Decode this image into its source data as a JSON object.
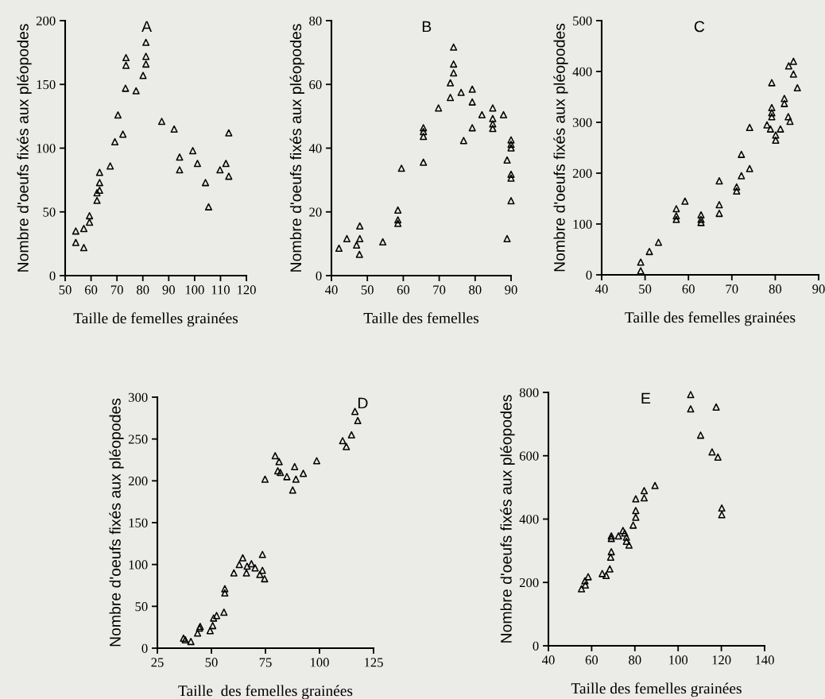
{
  "chart_data": [
    {
      "type": "scatter",
      "title": "A",
      "xlabel": "Taille de femelles grainées",
      "ylabel": "Nombre d'oeufs fixés aux pléopodes",
      "xlim": [
        50,
        120
      ],
      "xticks": [
        50,
        60,
        70,
        80,
        90,
        100,
        110,
        120
      ],
      "ylim": [
        0,
        200
      ],
      "yticks": [
        0,
        50,
        100,
        150,
        200
      ],
      "marker": "triangle",
      "series": [
        {
          "color": "#000000",
          "x": [
            54.1,
            54.1,
            57.2,
            57.2,
            59.4,
            59.4,
            62.3,
            62.3,
            63.3,
            63.3,
            63.3,
            67.4,
            69.2,
            70.4,
            72.3,
            73.3,
            73.5,
            73.5,
            77.4,
            80.1,
            81.2,
            81.2,
            81.2,
            87.3,
            92.1,
            94.2,
            94.2,
            99.3,
            101.1,
            104.2,
            105.4,
            109.8,
            112.1,
            113.2,
            113.2
          ],
          "values": [
            35,
            26,
            37,
            22,
            47,
            42,
            59,
            65,
            67,
            73,
            81,
            86,
            105,
            126,
            111,
            147,
            165,
            171,
            145,
            157,
            166,
            172,
            183,
            121,
            115,
            93,
            83,
            98,
            88,
            73,
            54,
            83,
            88,
            78,
            112
          ]
        }
      ]
    },
    {
      "type": "scatter",
      "title": "B",
      "xlabel": "Taille des femelles",
      "ylabel": "Nombre d'oeufs fixés aux pléopodes",
      "xlim": [
        40,
        90
      ],
      "xticks": [
        40,
        50,
        60,
        70,
        80,
        90
      ],
      "ylim": [
        0,
        80
      ],
      "yticks": [
        0,
        20,
        40,
        60,
        80
      ],
      "marker": "triangle",
      "series": [
        {
          "color": "#000000",
          "x": [
            42.1,
            44.3,
            47.0,
            47.8,
            47.9,
            47.9,
            54.3,
            58.5,
            58.5,
            58.5,
            59.5,
            65.6,
            65.6,
            65.6,
            65.6,
            69.8,
            73.1,
            73.1,
            74.0,
            74.0,
            74.0,
            76.1,
            76.8,
            79.2,
            79.2,
            79.2,
            81.9,
            84.9,
            84.9,
            84.9,
            84.9,
            87.9,
            88.9,
            88.9,
            90.0,
            90.0,
            90.0,
            90.0,
            90.0,
            90.0
          ],
          "values": [
            8.6,
            11.6,
            9.6,
            6.7,
            11.6,
            15.6,
            10.6,
            20.6,
            17.5,
            16.4,
            33.7,
            35.6,
            43.7,
            45.2,
            46.4,
            52.6,
            55.9,
            60.5,
            63.6,
            66.4,
            71.7,
            57.5,
            42.4,
            58.5,
            54.5,
            46.4,
            50.5,
            52.6,
            49.3,
            47.6,
            46.2,
            50.5,
            36.3,
            11.6,
            42.6,
            41.2,
            40.1,
            31.8,
            30.6,
            23.5
          ]
        }
      ]
    },
    {
      "type": "scatter",
      "title": "C",
      "xlabel": "Taille des femelles grainées",
      "ylabel": "Nombre d'oeufs fixés aux pléopodes",
      "xlim": [
        40,
        90
      ],
      "xticks": [
        40,
        50,
        60,
        70,
        80,
        90
      ],
      "ylim": [
        0,
        500
      ],
      "yticks": [
        0,
        100,
        200,
        300,
        400,
        500
      ],
      "marker": "triangle",
      "series": [
        {
          "color": "#000000",
          "x": [
            49.0,
            49.0,
            51.0,
            53.1,
            57.2,
            57.2,
            57.2,
            59.2,
            62.9,
            62.9,
            62.9,
            67.1,
            67.1,
            67.1,
            71.1,
            71.1,
            72.2,
            72.2,
            74.1,
            74.1,
            78.1,
            79.2,
            79.2,
            79.2,
            79.2,
            78.9,
            80.1,
            80.1,
            81.2,
            82.1,
            82.1,
            83.0,
            83.4,
            83.1,
            84.2,
            84.2,
            85.1
          ],
          "values": [
            25,
            8,
            46,
            64,
            130,
            116,
            109,
            145,
            118,
            109,
            103,
            185,
            138,
            121,
            173,
            165,
            237,
            195,
            209,
            290,
            295,
            378,
            329,
            319,
            311,
            287,
            275,
            265,
            287,
            347,
            337,
            311,
            302,
            411,
            420,
            395,
            368
          ]
        }
      ]
    },
    {
      "type": "scatter",
      "title": "D",
      "xlabel": "Taille  des femelles grainées",
      "ylabel": "Nombre d'oeufs fixés aux pléopodes",
      "xlim": [
        25,
        125
      ],
      "xticks": [
        25,
        50,
        75,
        100,
        125
      ],
      "ylim": [
        0,
        300
      ],
      "yticks": [
        0,
        50,
        100,
        150,
        200,
        250,
        300
      ],
      "marker": "triangle",
      "series": [
        {
          "color": "#000000",
          "x": [
            37.1,
            37.9,
            40.5,
            43.6,
            44.5,
            44.8,
            49.4,
            50.6,
            51.0,
            52.4,
            55.8,
            56.2,
            56.2,
            60.4,
            62.9,
            64.5,
            66.2,
            66.5,
            68.5,
            70.2,
            72.4,
            73.6,
            73.6,
            74.6,
            74.8,
            79.5,
            81.3,
            80.7,
            81.9,
            84.9,
            87.6,
            88.5,
            89.1,
            92.5,
            98.7,
            110.7,
            112.4,
            114.8,
            117.7,
            116.4
          ],
          "values": [
            12,
            10,
            8,
            18,
            24,
            26,
            21,
            27,
            36,
            39,
            43,
            66,
            71,
            90,
            100,
            108,
            90,
            98,
            101,
            96,
            88,
            112,
            93,
            83,
            202,
            230,
            223,
            212,
            210,
            205,
            189,
            217,
            202,
            209,
            224,
            248,
            241,
            255,
            272,
            283
          ]
        }
      ]
    },
    {
      "type": "scatter",
      "title": "E",
      "xlabel": "Taille des femelles grainées",
      "ylabel": "Nombre d'oeufs fixés aux pléopodes",
      "xlim": [
        40,
        140
      ],
      "xticks": [
        40,
        60,
        80,
        100,
        120,
        140
      ],
      "ylim": [
        0,
        800
      ],
      "yticks": [
        0,
        200,
        400,
        600,
        800
      ],
      "marker": "triangle",
      "series": [
        {
          "color": "#000000",
          "x": [
            55.3,
            57.1,
            56.9,
            58.4,
            64.9,
            66.7,
            68.4,
            68.8,
            69.1,
            69.1,
            69.1,
            72.4,
            74.5,
            75.3,
            76.1,
            76.1,
            77.3,
            79.2,
            80.4,
            80.4,
            80.4,
            84.3,
            84.3,
            89.3,
            110.4,
            115.7,
            118.4,
            120.2,
            120.2,
            105.8,
            105.8,
            117.6
          ],
          "values": [
            180,
            192,
            205,
            218,
            228,
            222,
            243,
            280,
            297,
            339,
            347,
            347,
            364,
            356,
            343,
            330,
            318,
            381,
            406,
            427,
            464,
            490,
            467,
            506,
            665,
            612,
            596,
            435,
            414,
            793,
            748,
            754
          ]
        }
      ]
    }
  ]
}
